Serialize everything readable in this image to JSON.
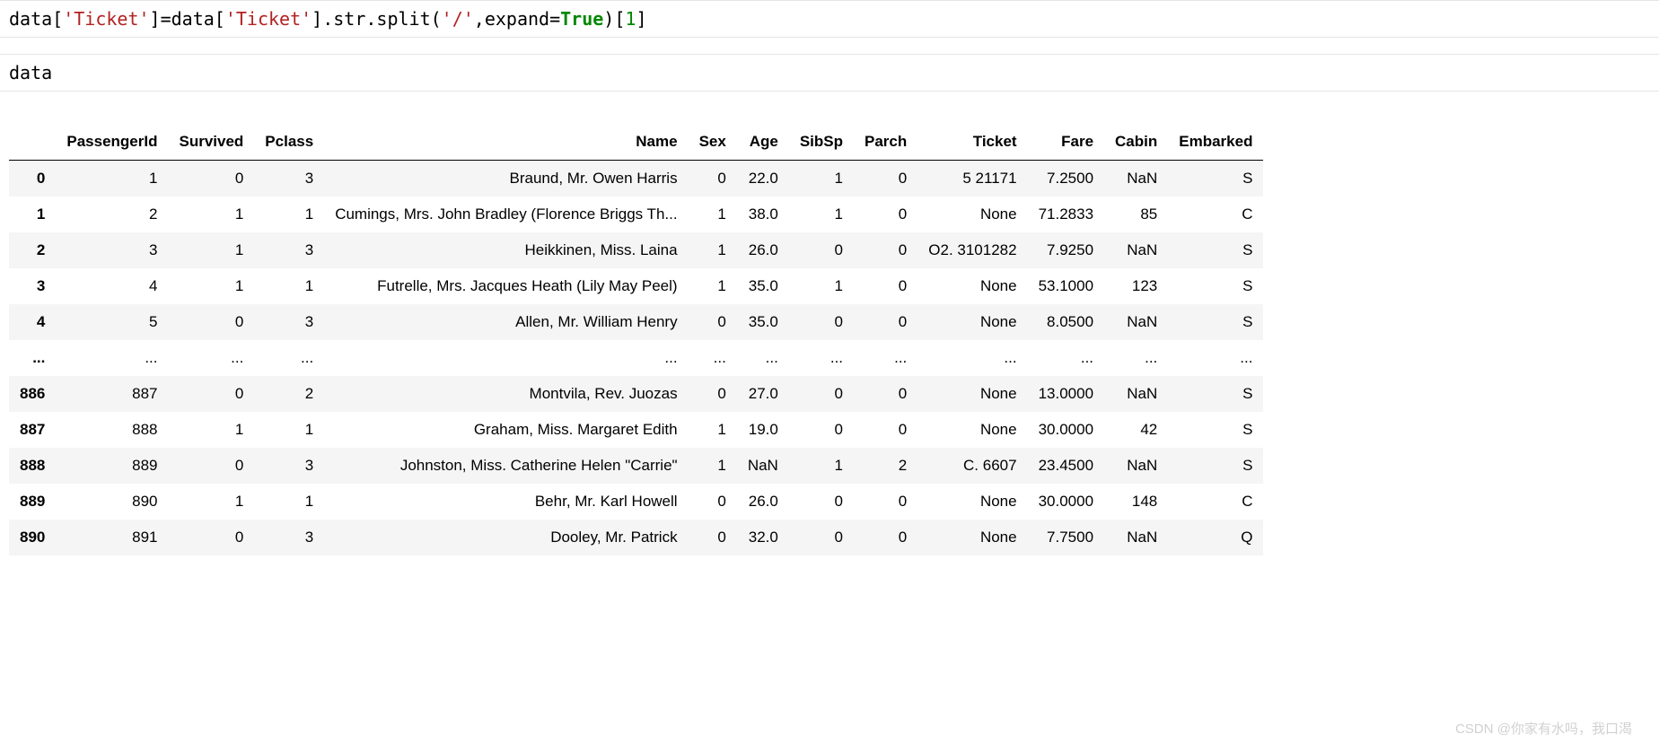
{
  "cells": {
    "code1": {
      "tokens": [
        {
          "t": "data[",
          "cls": "var"
        },
        {
          "t": "'Ticket'",
          "cls": "str"
        },
        {
          "t": "]=data[",
          "cls": "var"
        },
        {
          "t": "'Ticket'",
          "cls": "str"
        },
        {
          "t": "].str.split(",
          "cls": "var"
        },
        {
          "t": "'/'",
          "cls": "str"
        },
        {
          "t": ",expand=",
          "cls": "var"
        },
        {
          "t": "True",
          "cls": "kw"
        },
        {
          "t": ")[",
          "cls": "var"
        },
        {
          "t": "1",
          "cls": "num"
        },
        {
          "t": "]",
          "cls": "var"
        }
      ]
    },
    "code2": {
      "tokens": [
        {
          "t": "data",
          "cls": "var"
        }
      ]
    }
  },
  "dataframe": {
    "columns": [
      "PassengerId",
      "Survived",
      "Pclass",
      "Name",
      "Sex",
      "Age",
      "SibSp",
      "Parch",
      "Ticket",
      "Fare",
      "Cabin",
      "Embarked"
    ],
    "index": [
      "0",
      "1",
      "2",
      "3",
      "4",
      "...",
      "886",
      "887",
      "888",
      "889",
      "890"
    ],
    "rows": [
      [
        "1",
        "0",
        "3",
        "Braund, Mr. Owen Harris",
        "0",
        "22.0",
        "1",
        "0",
        "5 21171",
        "7.2500",
        "NaN",
        "S"
      ],
      [
        "2",
        "1",
        "1",
        "Cumings, Mrs. John Bradley (Florence Briggs Th...",
        "1",
        "38.0",
        "1",
        "0",
        "None",
        "71.2833",
        "85",
        "C"
      ],
      [
        "3",
        "1",
        "3",
        "Heikkinen, Miss. Laina",
        "1",
        "26.0",
        "0",
        "0",
        "O2. 3101282",
        "7.9250",
        "NaN",
        "S"
      ],
      [
        "4",
        "1",
        "1",
        "Futrelle, Mrs. Jacques Heath (Lily May Peel)",
        "1",
        "35.0",
        "1",
        "0",
        "None",
        "53.1000",
        "123",
        "S"
      ],
      [
        "5",
        "0",
        "3",
        "Allen, Mr. William Henry",
        "0",
        "35.0",
        "0",
        "0",
        "None",
        "8.0500",
        "NaN",
        "S"
      ],
      [
        "...",
        "...",
        "...",
        "...",
        "...",
        "...",
        "...",
        "...",
        "...",
        "...",
        "...",
        "..."
      ],
      [
        "887",
        "0",
        "2",
        "Montvila, Rev. Juozas",
        "0",
        "27.0",
        "0",
        "0",
        "None",
        "13.0000",
        "NaN",
        "S"
      ],
      [
        "888",
        "1",
        "1",
        "Graham, Miss. Margaret Edith",
        "1",
        "19.0",
        "0",
        "0",
        "None",
        "30.0000",
        "42",
        "S"
      ],
      [
        "889",
        "0",
        "3",
        "Johnston, Miss. Catherine Helen \"Carrie\"",
        "1",
        "NaN",
        "1",
        "2",
        "C. 6607",
        "23.4500",
        "NaN",
        "S"
      ],
      [
        "890",
        "1",
        "1",
        "Behr, Mr. Karl Howell",
        "0",
        "26.0",
        "0",
        "0",
        "None",
        "30.0000",
        "148",
        "C"
      ],
      [
        "891",
        "0",
        "3",
        "Dooley, Mr. Patrick",
        "0",
        "32.0",
        "0",
        "0",
        "None",
        "7.7500",
        "NaN",
        "Q"
      ]
    ]
  },
  "watermark": "CSDN @你家有水吗，我口渴"
}
